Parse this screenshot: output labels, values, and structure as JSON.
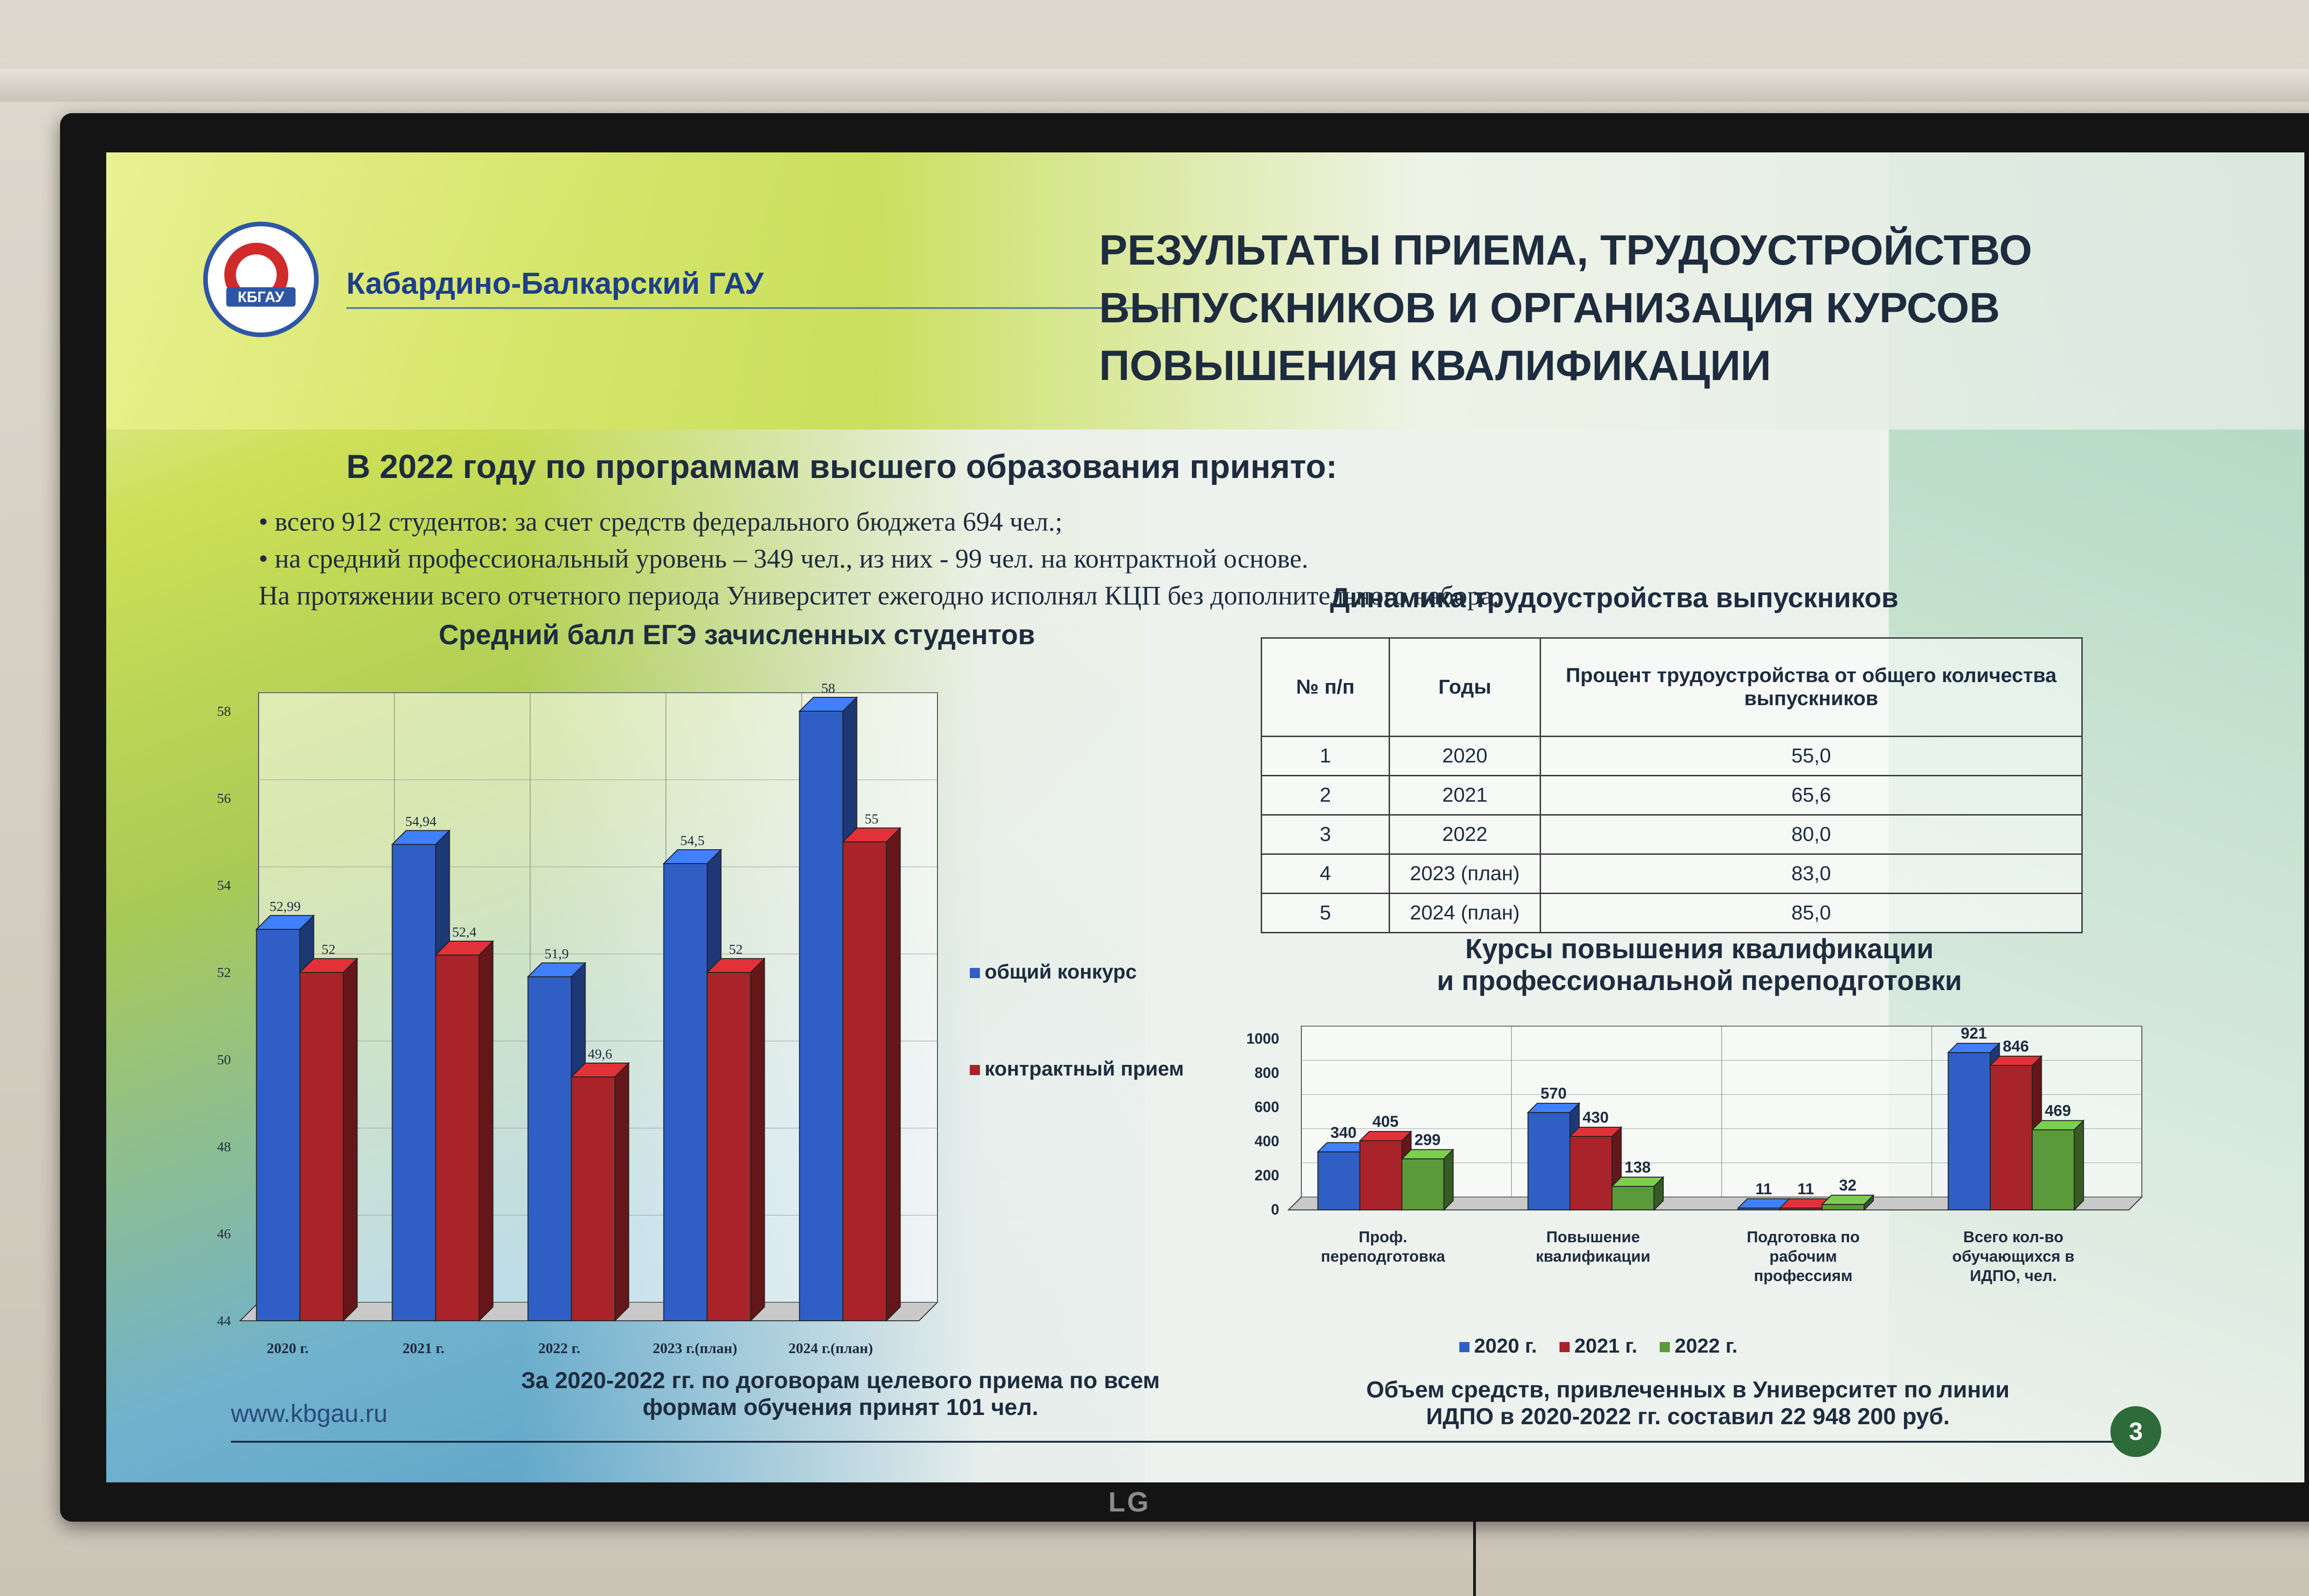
{
  "header": {
    "university": "Кабардино-Балкарский ГАУ",
    "logo_text": "КБГАУ",
    "title_lines": [
      "РЕЗУЛЬТАТЫ ПРИЕМА, ТРУДОУСТРОЙСТВО",
      "ВЫПУСКНИКОВ И ОРГАНИЗАЦИЯ КУРСОВ",
      "ПОВЫШЕНИЯ КВАЛИФИКАЦИИ"
    ]
  },
  "intro": {
    "heading": "В 2022 году по программам высшего образования принято:",
    "bullet1": "всего 912 студентов:  за счет средств федерального бюджета 694 чел.;",
    "bullet2": "на средний профессиональный уровень – 349 чел., из них - 99 чел. на контрактной основе.",
    "line3": "На протяжении всего отчетного периода Университет ежегодно исполнял КЦП без дополнительного набора."
  },
  "footer": {
    "site": "www.kbgau.ru",
    "page_number": "3",
    "left_note_lines": [
      "За 2020-2022  гг. по договорам целевого приема по всем",
      "формам обучения  принят 101 чел."
    ],
    "right_note_lines": [
      "Объем средств, привлеченных в Университет по линии",
      "ИДПО в 2020-2022  гг. составил 22 948 200 руб."
    ]
  },
  "employment_table": {
    "title": "Динамика трудоустройства выпускников",
    "headers": [
      "№ п/п",
      "Годы",
      "Процент трудоустройства от общего количества выпускников"
    ],
    "rows": [
      [
        "1",
        "2020",
        "55,0"
      ],
      [
        "2",
        "2021",
        "65,6"
      ],
      [
        "3",
        "2022",
        "80,0"
      ],
      [
        "4",
        "2023 (план)",
        "83,0"
      ],
      [
        "5",
        "2024 (план)",
        "85,0"
      ]
    ]
  },
  "chart_data": [
    {
      "type": "bar",
      "title": "Средний балл ЕГЭ зачисленных студентов",
      "categories": [
        "2020 г.",
        "2021 г.",
        "2022 г.",
        "2023 г.(план)",
        "2024 г.(план)"
      ],
      "series": [
        {
          "name": "общий конкурс",
          "values": [
            52.99,
            54.94,
            51.9,
            54.5,
            58
          ],
          "labels": [
            "52,99",
            "54,94",
            "51,9",
            "54,5",
            "58"
          ],
          "color": "#2f5fc4"
        },
        {
          "name": "контрактный прием",
          "values": [
            52,
            52.4,
            49.6,
            52,
            55
          ],
          "labels": [
            "52",
            "52,4",
            "49,6",
            "52",
            "55"
          ],
          "color": "#a8242a"
        }
      ],
      "yticks": [
        "44",
        "46",
        "48",
        "50",
        "52",
        "54",
        "56",
        "58"
      ],
      "ylim": [
        44,
        58
      ],
      "legend": "right"
    },
    {
      "type": "bar",
      "title_lines": [
        "Курсы повышения квалификации",
        "и профессиональной переподготовки"
      ],
      "categories": [
        [
          "Проф.",
          "переподготовка"
        ],
        [
          "Повышение",
          "квалификации"
        ],
        [
          "Подготовка по",
          "рабочим",
          "профессиям"
        ],
        [
          "Всего кол-во",
          "обучающихся в",
          "ИДПО, чел."
        ]
      ],
      "series": [
        {
          "name": "2020 г.",
          "values": [
            340,
            570,
            11,
            921
          ],
          "color": "#2f5fc4"
        },
        {
          "name": "2021 г.",
          "values": [
            405,
            430,
            11,
            846
          ],
          "color": "#a8242a"
        },
        {
          "name": "2022 г.",
          "values": [
            299,
            138,
            32,
            469
          ],
          "color": "#5a9a3a"
        }
      ],
      "yticks": [
        "0",
        "200",
        "400",
        "600",
        "800",
        "1000"
      ],
      "ylim": [
        0,
        1000
      ],
      "legend": "bottom"
    }
  ]
}
